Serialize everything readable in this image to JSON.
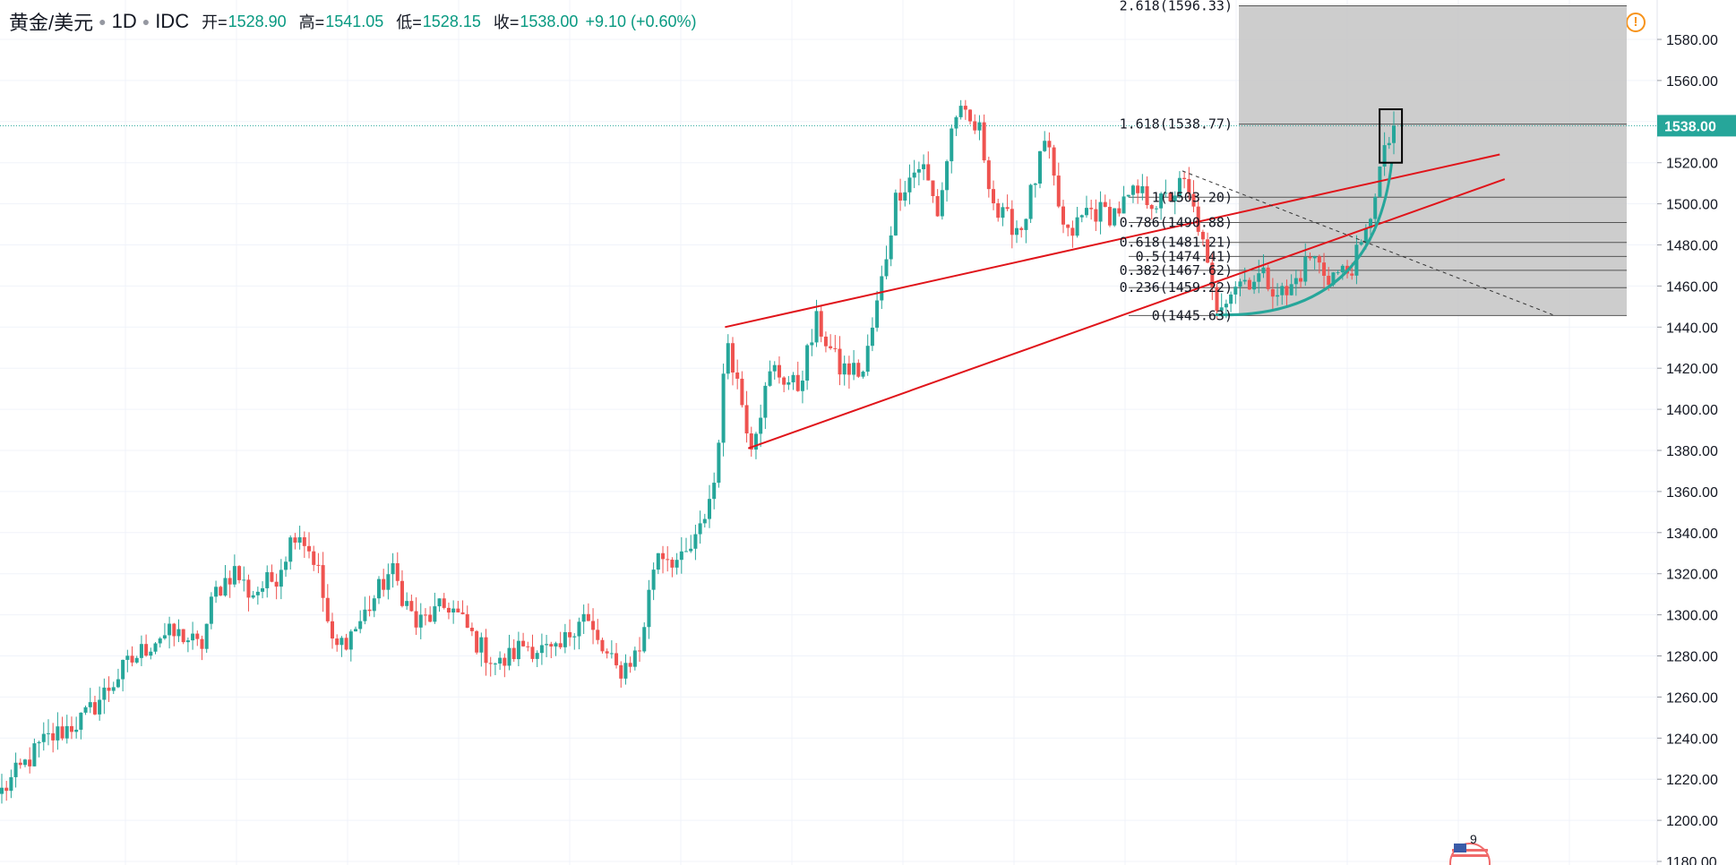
{
  "header": {
    "symbol": "黄金/美元",
    "interval": "1D",
    "exchange": "IDC",
    "open_label": "开=",
    "open": "1528.90",
    "high_label": "高=",
    "high": "1541.05",
    "low_label": "低=",
    "low": "1528.15",
    "close_label": "收=",
    "close": "1538.00",
    "change": "+9.10 (+0.60%)"
  },
  "colors": {
    "up": "#26a69a",
    "down": "#ef5350",
    "trendline": "#e0141a",
    "arc": "#26a69a",
    "fib_zone": "#c8c8c8",
    "grid": "#f0f3fa",
    "price_tag": "#26a69a"
  },
  "warning_icon": "!",
  "events_badge": "9",
  "chart_data": {
    "type": "candlestick",
    "y_axis_position": "right",
    "ylim": [
      1175,
      1597
    ],
    "y_ticks": [
      "1180.00",
      "1200.00",
      "1220.00",
      "1240.00",
      "1260.00",
      "1280.00",
      "1300.00",
      "1320.00",
      "1340.00",
      "1360.00",
      "1380.00",
      "1400.00",
      "1420.00",
      "1440.00",
      "1460.00",
      "1480.00",
      "1500.00",
      "1520.00",
      "1540.00",
      "1560.00",
      "1580.00"
    ],
    "last_price": 1538.0,
    "last_price_label": "1538.00",
    "fib_levels": [
      {
        "label": "2.618(1596.33)",
        "value": 1596.33
      },
      {
        "label": "1.618(1538.77)",
        "value": 1538.77
      },
      {
        "label": "1(1503.20)",
        "value": 1503.2
      },
      {
        "label": "0.786(1490.88)",
        "value": 1490.88
      },
      {
        "label": "0.618(1481.21)",
        "value": 1481.21
      },
      {
        "label": "0.5(1474.41)",
        "value": 1474.41
      },
      {
        "label": "0.382(1467.62)",
        "value": 1467.62
      },
      {
        "label": "0.236(1459.22)",
        "value": 1459.22
      },
      {
        "label": "0(1445.63)",
        "value": 1445.63
      }
    ],
    "trendlines": [
      {
        "x": [
          0.4375,
          0.905
        ],
        "y": [
          1440,
          1524
        ]
      },
      {
        "x": [
          0.4515,
          0.908
        ],
        "y": [
          1381,
          1512
        ]
      },
      {
        "x": [
          0.7135,
          0.937
        ],
        "y": [
          1516,
          1446
        ],
        "style": "dashed"
      }
    ],
    "arc": {
      "x": [
        0.7335,
        0.8398
      ],
      "y": [
        1446,
        1520
      ]
    },
    "highlight_box": {
      "x": [
        0.8325,
        0.846
      ],
      "y": [
        1520,
        1546
      ]
    },
    "waypoints": [
      [
        0.0,
        1214
      ],
      [
        0.025,
        1238
      ],
      [
        0.05,
        1250
      ],
      [
        0.075,
        1275
      ],
      [
        0.095,
        1290
      ],
      [
        0.11,
        1290
      ],
      [
        0.12,
        1283
      ],
      [
        0.128,
        1310
      ],
      [
        0.14,
        1322
      ],
      [
        0.15,
        1310
      ],
      [
        0.165,
        1318
      ],
      [
        0.178,
        1343
      ],
      [
        0.19,
        1325
      ],
      [
        0.2,
        1282
      ],
      [
        0.215,
        1295
      ],
      [
        0.235,
        1322
      ],
      [
        0.25,
        1295
      ],
      [
        0.27,
        1305
      ],
      [
        0.288,
        1285
      ],
      [
        0.3,
        1275
      ],
      [
        0.315,
        1286
      ],
      [
        0.335,
        1280
      ],
      [
        0.35,
        1302
      ],
      [
        0.36,
        1285
      ],
      [
        0.372,
        1272
      ],
      [
        0.385,
        1283
      ],
      [
        0.395,
        1332
      ],
      [
        0.41,
        1325
      ],
      [
        0.42,
        1337
      ],
      [
        0.43,
        1365
      ],
      [
        0.438,
        1435
      ],
      [
        0.452,
        1384
      ],
      [
        0.465,
        1420
      ],
      [
        0.48,
        1410
      ],
      [
        0.492,
        1443
      ],
      [
        0.505,
        1420
      ],
      [
        0.52,
        1418
      ],
      [
        0.53,
        1458
      ],
      [
        0.54,
        1505
      ],
      [
        0.555,
        1520
      ],
      [
        0.565,
        1495
      ],
      [
        0.575,
        1545
      ],
      [
        0.59,
        1535
      ],
      [
        0.6,
        1495
      ],
      [
        0.615,
        1488
      ],
      [
        0.63,
        1530
      ],
      [
        0.642,
        1482
      ],
      [
        0.655,
        1497
      ],
      [
        0.67,
        1495
      ],
      [
        0.685,
        1505
      ],
      [
        0.7,
        1500
      ],
      [
        0.713,
        1510
      ],
      [
        0.722,
        1490
      ],
      [
        0.732,
        1450
      ],
      [
        0.745,
        1462
      ],
      [
        0.76,
        1465
      ],
      [
        0.775,
        1455
      ],
      [
        0.79,
        1475
      ],
      [
        0.8,
        1465
      ],
      [
        0.812,
        1467
      ],
      [
        0.822,
        1480
      ],
      [
        0.83,
        1512
      ],
      [
        0.84,
        1538
      ]
    ]
  }
}
